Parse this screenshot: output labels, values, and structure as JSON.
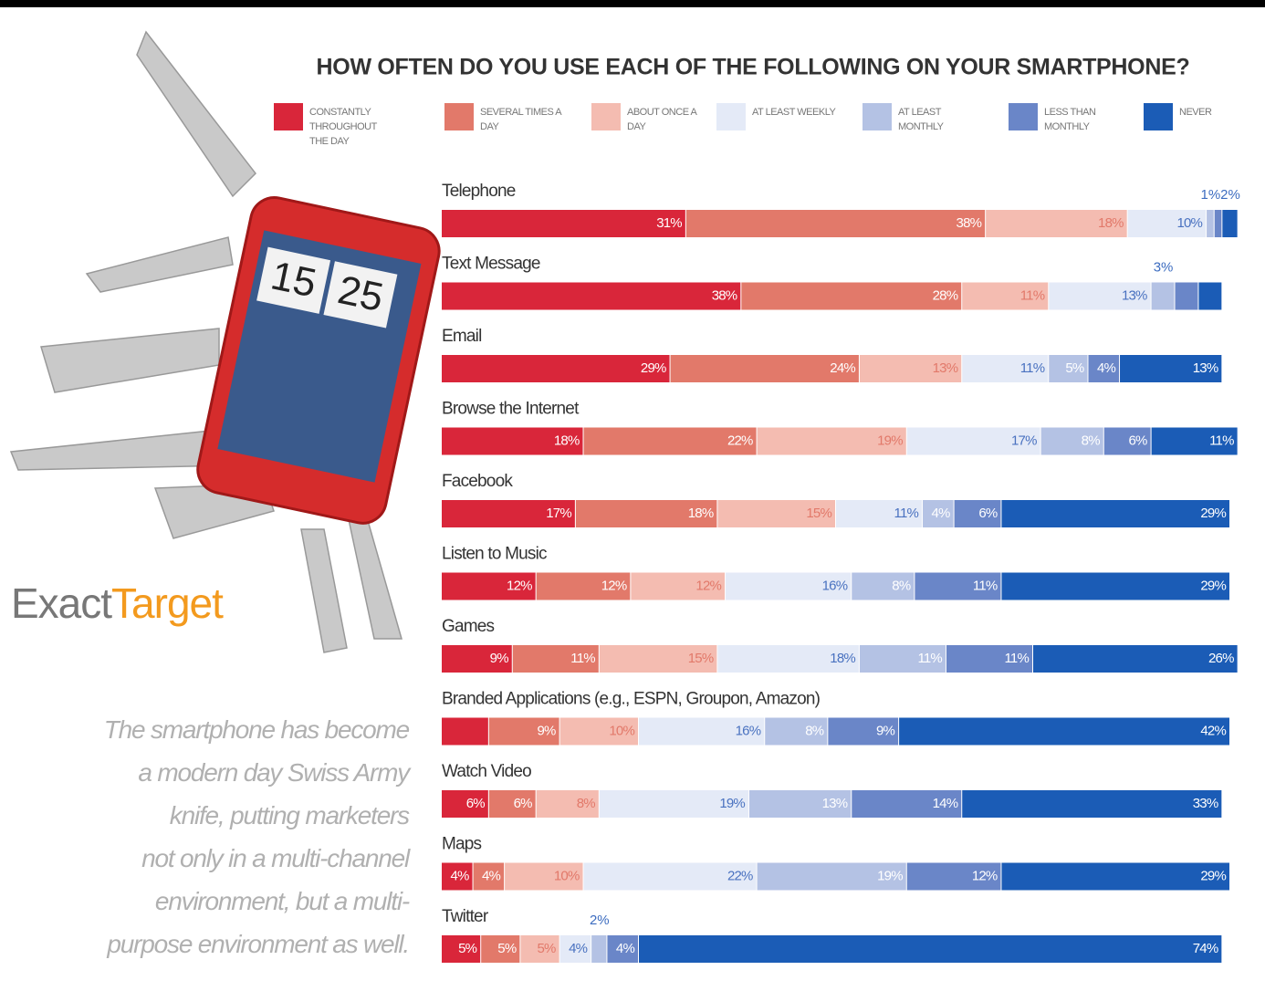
{
  "chart_data": {
    "type": "stacked-bar-horizontal",
    "title": "HOW OFTEN DO YOU USE EACH OF THE FOLLOWING ON YOUR SMARTPHONE?",
    "categories": [
      "Telephone",
      "Text Message",
      "Email",
      "Browse the Internet",
      "Facebook",
      "Listen to Music",
      "Games",
      "Branded Applications (e.g., ESPN, Groupon, Amazon)",
      "Watch Video",
      "Maps",
      "Twitter"
    ],
    "xlim": [
      0,
      100
    ],
    "series": [
      {
        "name": "CONSTANTLY THROUGHOUT THE DAY",
        "color": "#d9263a",
        "values": [
          31,
          38,
          29,
          18,
          17,
          12,
          9,
          6,
          6,
          4,
          5
        ],
        "value_labels": [
          "31%",
          "38%",
          "29%",
          "18%",
          "17%",
          "12%",
          "9%",
          null,
          "6%",
          "4%",
          "5%"
        ]
      },
      {
        "name": "SEVERAL TIMES A DAY",
        "color": "#e2796a",
        "values": [
          38,
          28,
          24,
          22,
          18,
          12,
          11,
          9,
          6,
          4,
          5
        ],
        "value_labels": [
          "38%",
          "28%",
          "24%",
          "22%",
          "18%",
          "12%",
          "11%",
          "9%",
          "6%",
          "4%",
          "5%"
        ]
      },
      {
        "name": "ABOUT ONCE A DAY",
        "color": "#f4bcb1",
        "values": [
          18,
          11,
          13,
          19,
          15,
          12,
          15,
          10,
          8,
          10,
          5
        ],
        "value_labels": [
          "18%",
          "11%",
          "13%",
          "19%",
          "15%",
          "12%",
          "15%",
          "10%",
          "8%",
          "10%",
          "5%"
        ]
      },
      {
        "name": "AT LEAST WEEKLY",
        "color": "#e4eaf7",
        "values": [
          10,
          13,
          11,
          17,
          11,
          16,
          18,
          16,
          19,
          22,
          4
        ],
        "value_labels": [
          "10%",
          "13%",
          "11%",
          "17%",
          "11%",
          "16%",
          "18%",
          "16%",
          "19%",
          "22%",
          "4%"
        ]
      },
      {
        "name": "AT LEAST MONTHLY",
        "color": "#b4c2e4",
        "values": [
          1,
          3,
          5,
          8,
          4,
          8,
          11,
          8,
          13,
          19,
          2
        ],
        "value_labels": [
          "1%",
          "3%",
          "5%",
          "8%",
          "4%",
          "8%",
          "11%",
          "8%",
          "13%",
          "19%",
          "2%"
        ]
      },
      {
        "name": "LESS THAN MONTHLY",
        "color": "#6a86c8",
        "values": [
          1,
          3,
          4,
          6,
          6,
          11,
          11,
          9,
          14,
          12,
          4
        ],
        "value_labels": [
          null,
          null,
          "4%",
          "6%",
          "6%",
          "11%",
          "11%",
          "9%",
          "14%",
          "12%",
          "4%"
        ]
      },
      {
        "name": "NEVER",
        "color": "#1b5cb6",
        "values": [
          2,
          3,
          13,
          11,
          29,
          29,
          26,
          42,
          33,
          29,
          74
        ],
        "value_labels": [
          "2%",
          null,
          "13%",
          "11%",
          "29%",
          "29%",
          "26%",
          "42%",
          "33%",
          "29%",
          "74%"
        ]
      }
    ]
  },
  "logo": {
    "first": "Exact",
    "second": "Target"
  },
  "phone_clock": [
    "15",
    "25"
  ],
  "quote": [
    "The smartphone has become",
    "a modern day Swiss Army",
    "knife, putting marketers",
    "not only in a multi-channel",
    "environment, but a multi-",
    "purpose environment as well."
  ]
}
